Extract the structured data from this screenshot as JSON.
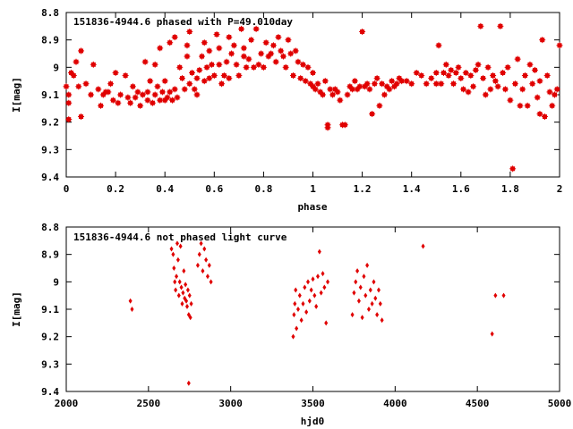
{
  "chart_data": [
    {
      "type": "scatter",
      "title": "151836-4944.6 phased with P=49.010day",
      "xlabel": "phase",
      "ylabel": "I[mag]",
      "xlim": [
        0,
        2
      ],
      "ylim": [
        9.4,
        8.8
      ],
      "y_inverted": true,
      "xticks": [
        0,
        0.2,
        0.4,
        0.6,
        0.8,
        1,
        1.2,
        1.4,
        1.6,
        1.8,
        2
      ],
      "xtick_labels": [
        "0",
        "0.2",
        "0.4",
        "0.6",
        "0.8",
        "1",
        "1.2",
        "1.4",
        "1.6",
        "1.8",
        "2"
      ],
      "yticks": [
        8.8,
        8.9,
        9.0,
        9.1,
        9.2,
        9.3,
        9.4
      ],
      "ytick_labels": [
        "8.8",
        "8.9",
        "9",
        "9.1",
        "9.2",
        "9.3",
        "9.4"
      ],
      "marker_color": "#e00000",
      "grid": false,
      "points": [
        [
          0.0,
          9.07
        ],
        [
          0.01,
          9.1
        ],
        [
          0.01,
          9.13
        ],
        [
          0.01,
          9.19
        ],
        [
          0.02,
          9.02
        ],
        [
          0.03,
          9.03
        ],
        [
          0.04,
          8.98
        ],
        [
          0.05,
          9.07
        ],
        [
          0.06,
          8.94
        ],
        [
          0.06,
          9.18
        ],
        [
          0.08,
          9.06
        ],
        [
          0.1,
          9.1
        ],
        [
          0.11,
          8.99
        ],
        [
          0.13,
          9.08
        ],
        [
          0.14,
          9.14
        ],
        [
          0.15,
          9.1
        ],
        [
          0.16,
          9.09
        ],
        [
          0.17,
          9.09
        ],
        [
          0.18,
          9.06
        ],
        [
          0.19,
          9.12
        ],
        [
          0.2,
          9.02
        ],
        [
          0.21,
          9.13
        ],
        [
          0.22,
          9.1
        ],
        [
          0.24,
          9.03
        ],
        [
          0.25,
          9.11
        ],
        [
          0.26,
          9.13
        ],
        [
          0.27,
          9.07
        ],
        [
          0.28,
          9.11
        ],
        [
          0.29,
          9.09
        ],
        [
          0.3,
          9.14
        ],
        [
          0.31,
          9.1
        ],
        [
          0.32,
          8.98
        ],
        [
          0.33,
          9.09
        ],
        [
          0.33,
          9.12
        ],
        [
          0.34,
          9.05
        ],
        [
          0.35,
          9.13
        ],
        [
          0.36,
          9.1
        ],
        [
          0.36,
          8.99
        ],
        [
          0.37,
          9.07
        ],
        [
          0.38,
          9.12
        ],
        [
          0.38,
          8.93
        ],
        [
          0.39,
          9.09
        ],
        [
          0.4,
          9.05
        ],
        [
          0.4,
          9.12
        ],
        [
          0.41,
          9.11
        ],
        [
          0.42,
          9.09
        ],
        [
          0.42,
          8.91
        ],
        [
          0.43,
          9.12
        ],
        [
          0.44,
          9.08
        ],
        [
          0.44,
          8.89
        ],
        [
          0.45,
          9.11
        ],
        [
          0.46,
          9.0
        ],
        [
          0.47,
          9.04
        ],
        [
          0.48,
          9.08
        ],
        [
          0.49,
          8.96
        ],
        [
          0.49,
          8.92
        ],
        [
          0.5,
          9.06
        ],
        [
          0.5,
          8.87
        ],
        [
          0.51,
          9.02
        ],
        [
          0.52,
          9.08
        ],
        [
          0.53,
          9.1
        ],
        [
          0.53,
          9.04
        ],
        [
          0.54,
          9.01
        ],
        [
          0.55,
          8.96
        ],
        [
          0.56,
          9.05
        ],
        [
          0.56,
          8.91
        ],
        [
          0.57,
          9.0
        ],
        [
          0.58,
          9.04
        ],
        [
          0.58,
          8.94
        ],
        [
          0.59,
          8.99
        ],
        [
          0.6,
          9.03
        ],
        [
          0.61,
          8.88
        ],
        [
          0.62,
          8.99
        ],
        [
          0.62,
          8.93
        ],
        [
          0.63,
          9.06
        ],
        [
          0.64,
          9.03
        ],
        [
          0.65,
          8.98
        ],
        [
          0.66,
          9.04
        ],
        [
          0.66,
          8.89
        ],
        [
          0.67,
          8.95
        ],
        [
          0.68,
          8.92
        ],
        [
          0.69,
          8.99
        ],
        [
          0.7,
          9.03
        ],
        [
          0.71,
          8.86
        ],
        [
          0.72,
          8.96
        ],
        [
          0.72,
          8.93
        ],
        [
          0.73,
          9.0
        ],
        [
          0.74,
          8.97
        ],
        [
          0.75,
          8.9
        ],
        [
          0.76,
          9.0
        ],
        [
          0.77,
          8.86
        ],
        [
          0.78,
          8.99
        ],
        [
          0.79,
          8.95
        ],
        [
          0.8,
          9.0
        ],
        [
          0.81,
          8.91
        ],
        [
          0.82,
          8.96
        ],
        [
          0.83,
          8.95
        ],
        [
          0.84,
          8.92
        ],
        [
          0.85,
          8.98
        ],
        [
          0.86,
          8.89
        ],
        [
          0.87,
          8.94
        ],
        [
          0.88,
          8.96
        ],
        [
          0.89,
          9.0
        ],
        [
          0.9,
          8.9
        ],
        [
          0.91,
          8.95
        ],
        [
          0.92,
          9.03
        ],
        [
          0.93,
          8.94
        ],
        [
          0.94,
          8.98
        ],
        [
          0.95,
          9.04
        ],
        [
          0.96,
          8.99
        ],
        [
          0.97,
          9.05
        ],
        [
          0.98,
          9.0
        ],
        [
          0.99,
          9.06
        ],
        [
          1.0,
          9.07
        ],
        [
          1.0,
          9.02
        ],
        [
          1.01,
          9.08
        ],
        [
          1.02,
          9.06
        ],
        [
          1.03,
          9.09
        ],
        [
          1.04,
          9.1
        ],
        [
          1.05,
          9.05
        ],
        [
          1.06,
          9.21
        ],
        [
          1.06,
          9.22
        ],
        [
          1.07,
          9.08
        ],
        [
          1.08,
          9.1
        ],
        [
          1.09,
          9.08
        ],
        [
          1.1,
          9.09
        ],
        [
          1.11,
          9.12
        ],
        [
          1.12,
          9.21
        ],
        [
          1.13,
          9.21
        ],
        [
          1.14,
          9.1
        ],
        [
          1.15,
          9.07
        ],
        [
          1.16,
          9.08
        ],
        [
          1.17,
          9.05
        ],
        [
          1.18,
          9.08
        ],
        [
          1.19,
          9.07
        ],
        [
          1.2,
          8.87
        ],
        [
          1.21,
          9.07
        ],
        [
          1.22,
          9.06
        ],
        [
          1.23,
          9.08
        ],
        [
          1.24,
          9.17
        ],
        [
          1.25,
          9.06
        ],
        [
          1.26,
          9.04
        ],
        [
          1.27,
          9.14
        ],
        [
          1.28,
          9.06
        ],
        [
          1.29,
          9.1
        ],
        [
          1.3,
          9.07
        ],
        [
          1.31,
          9.08
        ],
        [
          1.32,
          9.05
        ],
        [
          1.33,
          9.07
        ],
        [
          1.34,
          9.06
        ],
        [
          1.35,
          9.04
        ],
        [
          1.36,
          9.05
        ],
        [
          1.38,
          9.05
        ],
        [
          1.4,
          9.06
        ],
        [
          1.42,
          9.02
        ],
        [
          1.44,
          9.03
        ],
        [
          1.46,
          9.06
        ],
        [
          1.48,
          9.04
        ],
        [
          1.5,
          9.06
        ],
        [
          1.5,
          9.02
        ],
        [
          1.51,
          8.92
        ],
        [
          1.52,
          9.06
        ],
        [
          1.53,
          9.02
        ],
        [
          1.54,
          8.99
        ],
        [
          1.55,
          9.03
        ],
        [
          1.56,
          9.01
        ],
        [
          1.57,
          9.06
        ],
        [
          1.58,
          9.02
        ],
        [
          1.59,
          9.0
        ],
        [
          1.6,
          9.04
        ],
        [
          1.61,
          9.08
        ],
        [
          1.62,
          9.02
        ],
        [
          1.63,
          9.09
        ],
        [
          1.64,
          9.03
        ],
        [
          1.65,
          9.07
        ],
        [
          1.66,
          9.01
        ],
        [
          1.67,
          8.99
        ],
        [
          1.68,
          8.85
        ],
        [
          1.69,
          9.04
        ],
        [
          1.7,
          9.1
        ],
        [
          1.71,
          9.0
        ],
        [
          1.72,
          9.08
        ],
        [
          1.73,
          9.03
        ],
        [
          1.74,
          9.05
        ],
        [
          1.75,
          9.07
        ],
        [
          1.76,
          8.85
        ],
        [
          1.77,
          9.02
        ],
        [
          1.78,
          9.08
        ],
        [
          1.79,
          9.0
        ],
        [
          1.8,
          9.12
        ],
        [
          1.81,
          9.37
        ],
        [
          1.82,
          9.06
        ],
        [
          1.83,
          8.97
        ],
        [
          1.84,
          9.14
        ],
        [
          1.85,
          9.08
        ],
        [
          1.86,
          9.03
        ],
        [
          1.87,
          9.14
        ],
        [
          1.88,
          8.99
        ],
        [
          1.89,
          9.06
        ],
        [
          1.9,
          9.01
        ],
        [
          1.91,
          9.11
        ],
        [
          1.92,
          9.17
        ],
        [
          1.92,
          9.05
        ],
        [
          1.93,
          8.9
        ],
        [
          1.94,
          9.18
        ],
        [
          1.95,
          9.03
        ],
        [
          1.96,
          9.09
        ],
        [
          1.97,
          9.14
        ],
        [
          1.98,
          9.1
        ],
        [
          1.99,
          9.08
        ],
        [
          2.0,
          8.92
        ]
      ]
    },
    {
      "type": "scatter",
      "title": "151836-4944.6 not phased light curve",
      "xlabel": "hjd0",
      "ylabel": "I[mag]",
      "xlim": [
        2000,
        5000
      ],
      "ylim": [
        9.4,
        8.8
      ],
      "y_inverted": true,
      "xticks": [
        2000,
        2500,
        3000,
        3500,
        4000,
        4500,
        5000
      ],
      "xtick_labels": [
        "2000",
        "2500",
        "3000",
        "3500",
        "4000",
        "4500",
        "5000"
      ],
      "yticks": [
        8.8,
        8.9,
        9.0,
        9.1,
        9.2,
        9.3,
        9.4
      ],
      "ytick_labels": [
        "8.8",
        "8.9",
        "9",
        "9.1",
        "9.2",
        "9.3",
        "9.4"
      ],
      "marker_color": "#e00000",
      "grid": false,
      "points": [
        [
          2390,
          9.07
        ],
        [
          2400,
          9.1
        ],
        [
          2640,
          8.88
        ],
        [
          2650,
          8.9
        ],
        [
          2655,
          8.95
        ],
        [
          2660,
          9.0
        ],
        [
          2665,
          9.03
        ],
        [
          2670,
          8.98
        ],
        [
          2675,
          8.86
        ],
        [
          2680,
          8.92
        ],
        [
          2685,
          9.05
        ],
        [
          2690,
          9.0
        ],
        [
          2695,
          8.87
        ],
        [
          2700,
          9.02
        ],
        [
          2705,
          9.08
        ],
        [
          2710,
          9.04
        ],
        [
          2715,
          8.96
        ],
        [
          2720,
          9.06
        ],
        [
          2725,
          9.01
        ],
        [
          2730,
          9.07
        ],
        [
          2735,
          9.09
        ],
        [
          2740,
          9.03
        ],
        [
          2745,
          9.12
        ],
        [
          2750,
          9.05
        ],
        [
          2755,
          9.13
        ],
        [
          2760,
          9.08
        ],
        [
          2745,
          9.37
        ],
        [
          2800,
          8.94
        ],
        [
          2810,
          8.9
        ],
        [
          2820,
          8.86
        ],
        [
          2830,
          8.96
        ],
        [
          2840,
          8.88
        ],
        [
          2850,
          8.92
        ],
        [
          2860,
          8.98
        ],
        [
          2870,
          8.94
        ],
        [
          2880,
          9.0
        ],
        [
          3380,
          9.2
        ],
        [
          3385,
          9.12
        ],
        [
          3390,
          9.08
        ],
        [
          3395,
          9.03
        ],
        [
          3400,
          9.17
        ],
        [
          3410,
          9.1
        ],
        [
          3420,
          9.05
        ],
        [
          3430,
          9.14
        ],
        [
          3440,
          9.08
        ],
        [
          3450,
          9.02
        ],
        [
          3460,
          9.11
        ],
        [
          3470,
          9.0
        ],
        [
          3480,
          9.07
        ],
        [
          3490,
          9.03
        ],
        [
          3500,
          8.99
        ],
        [
          3510,
          9.05
        ],
        [
          3520,
          9.09
        ],
        [
          3530,
          8.98
        ],
        [
          3540,
          8.89
        ],
        [
          3550,
          9.04
        ],
        [
          3560,
          8.97
        ],
        [
          3570,
          9.02
        ],
        [
          3580,
          9.15
        ],
        [
          3590,
          9.0
        ],
        [
          3740,
          9.12
        ],
        [
          3750,
          9.04
        ],
        [
          3760,
          9.0
        ],
        [
          3770,
          8.96
        ],
        [
          3780,
          9.07
        ],
        [
          3790,
          9.02
        ],
        [
          3800,
          9.13
        ],
        [
          3810,
          8.98
        ],
        [
          3820,
          9.05
        ],
        [
          3830,
          8.94
        ],
        [
          3840,
          9.1
        ],
        [
          3850,
          9.03
        ],
        [
          3860,
          9.08
        ],
        [
          3870,
          9.0
        ],
        [
          3880,
          9.06
        ],
        [
          3890,
          9.12
        ],
        [
          3900,
          9.03
        ],
        [
          3910,
          9.08
        ],
        [
          3920,
          9.14
        ],
        [
          4170,
          8.87
        ],
        [
          4590,
          9.19
        ],
        [
          4610,
          9.05
        ],
        [
          4660,
          9.05
        ]
      ]
    }
  ]
}
